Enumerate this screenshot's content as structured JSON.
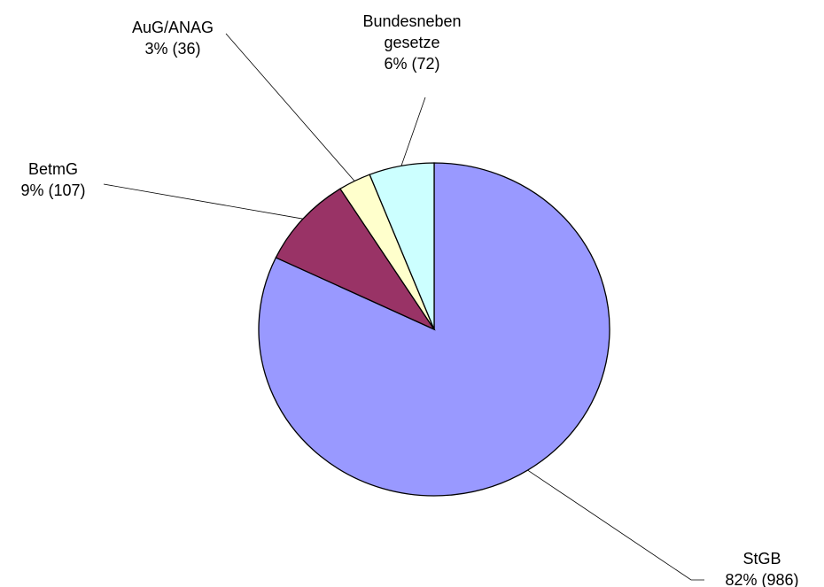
{
  "chart_data": {
    "type": "pie",
    "categories": [
      "StGB",
      "BetmG",
      "AuG/ANAG",
      "Bundesneben gesetze"
    ],
    "values": [
      986,
      107,
      36,
      72
    ],
    "value_labels": [
      "82% (986)",
      "9% (107)",
      "3% (36)",
      "6% (72)"
    ],
    "colors": [
      "#9999ff",
      "#993366",
      "#ffffcc",
      "#ccffff"
    ]
  }
}
